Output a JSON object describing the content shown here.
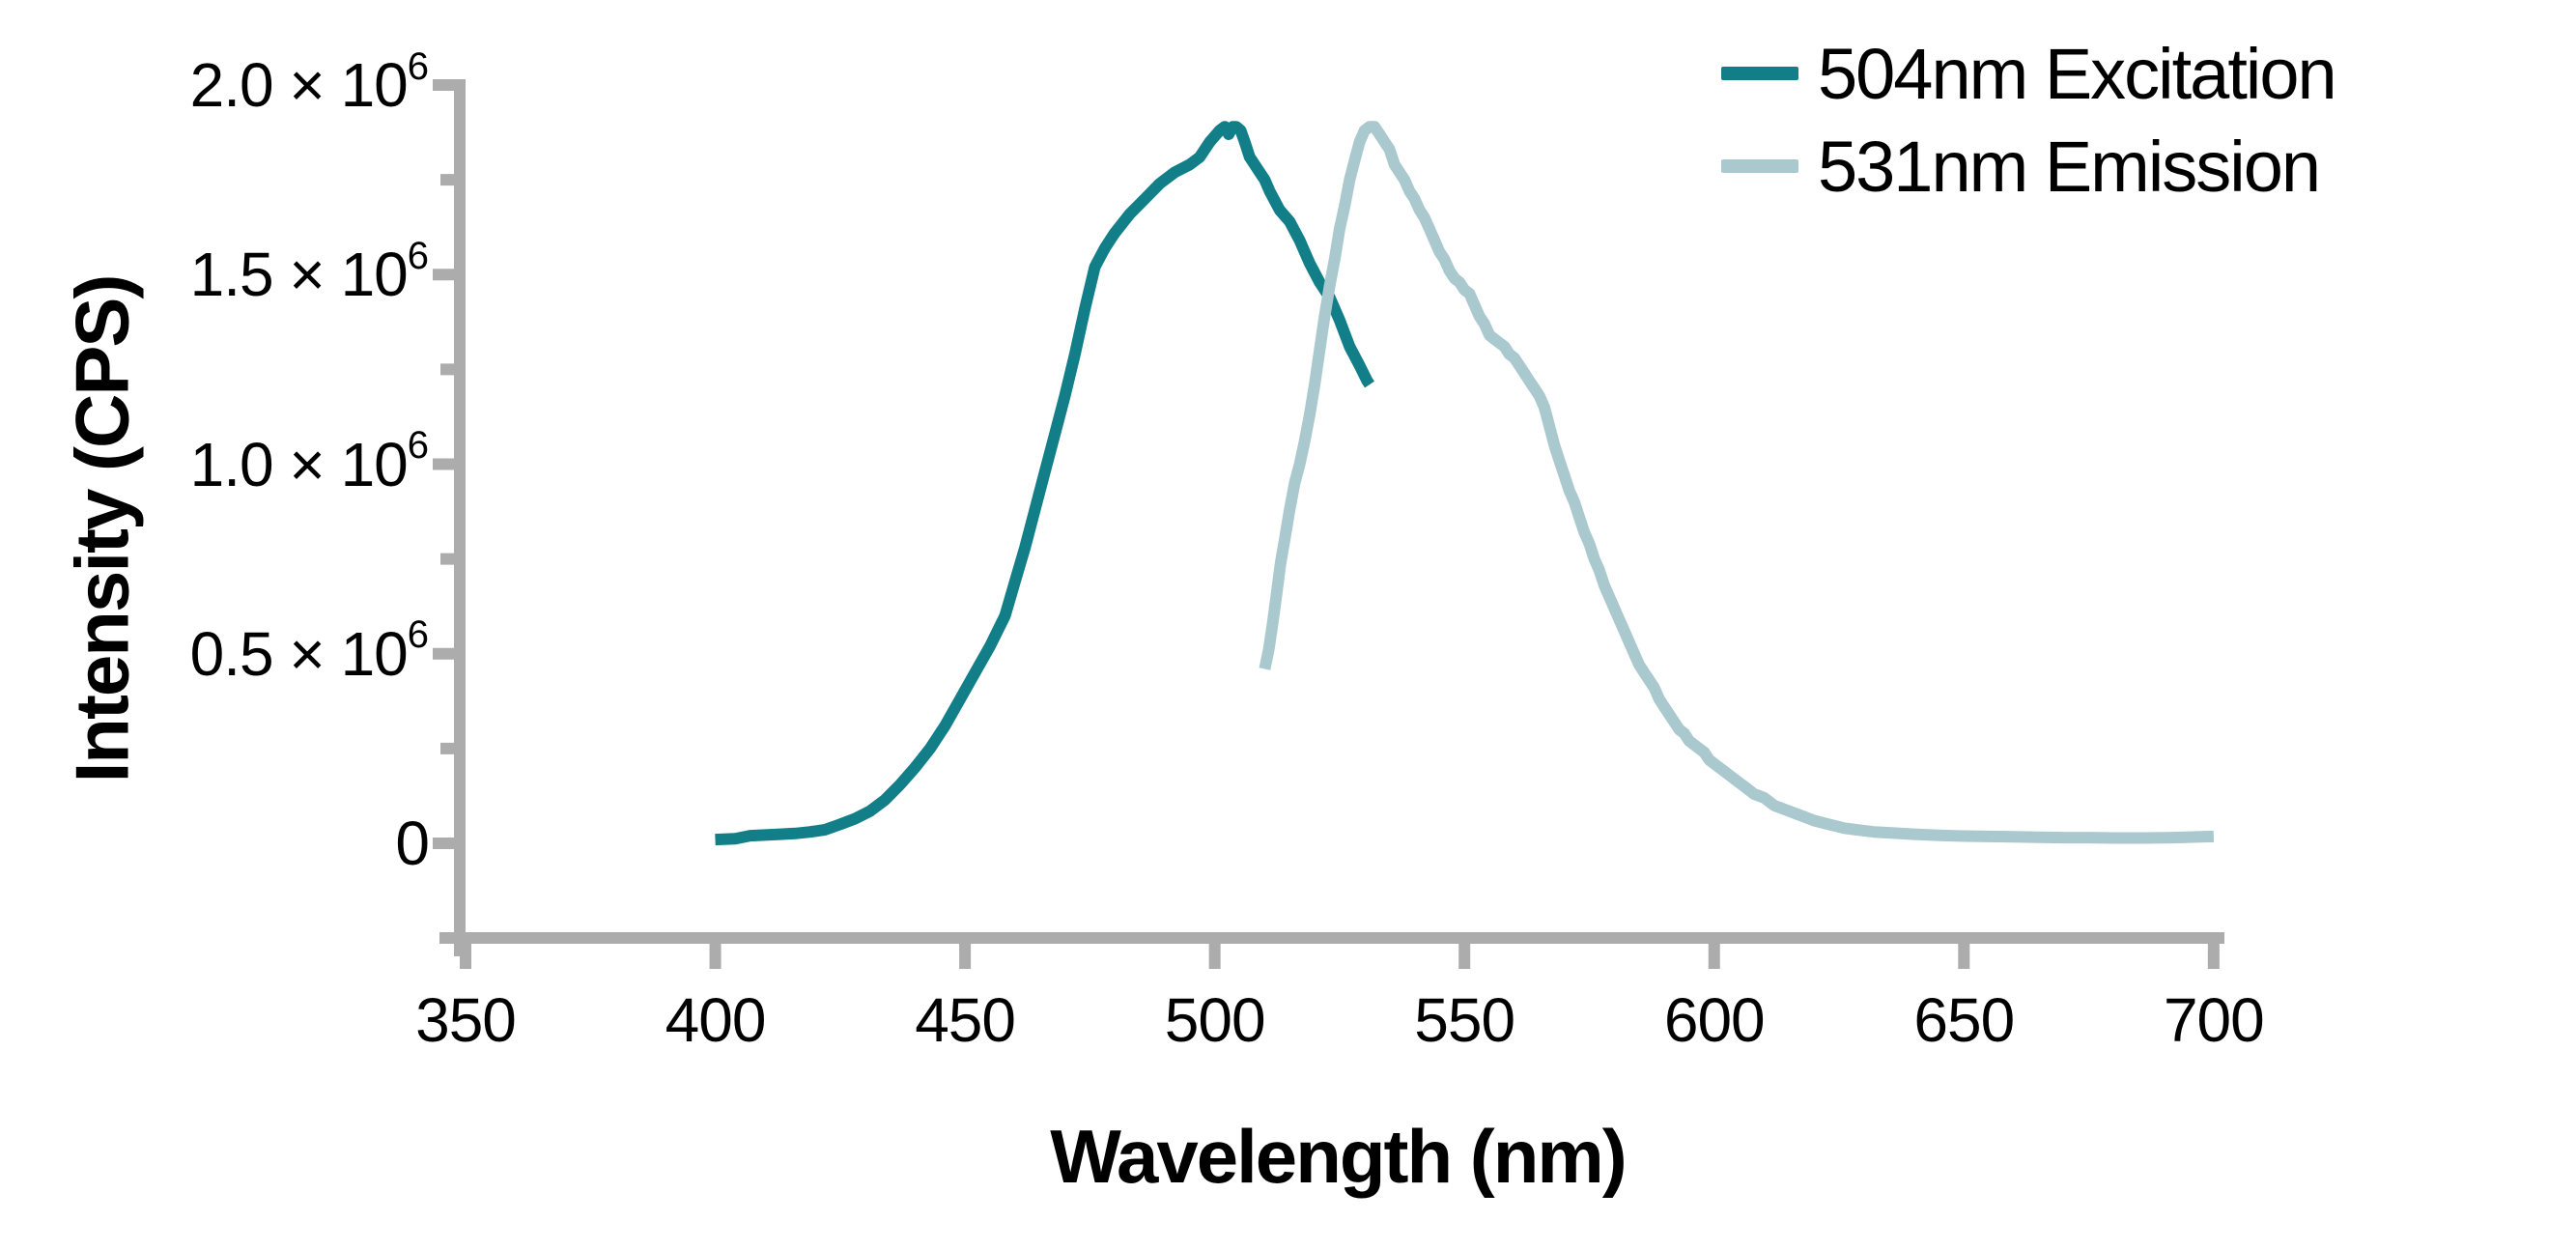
{
  "chart_data": {
    "type": "line",
    "title": "",
    "xlabel": "Wavelength (nm)",
    "ylabel": "Intensity (CPS)",
    "xlim": [
      350,
      700
    ],
    "ylim": [
      0,
      2000000
    ],
    "grid": false,
    "legend_position": "top-right",
    "axis_color": "#acacac",
    "text_color": "#000000",
    "x_ticks": [
      350,
      400,
      450,
      500,
      550,
      600,
      650,
      700
    ],
    "y_ticks": [
      {
        "value": 0,
        "base": "0",
        "sup": "",
        "label": "0"
      },
      {
        "value": 500000,
        "base": "0.5 × 10",
        "sup": "6",
        "label": "0.5 × 10⁶"
      },
      {
        "value": 1000000,
        "base": "1.0 × 10",
        "sup": "6",
        "label": "1.0 × 10⁶"
      },
      {
        "value": 1500000,
        "base": "1.5 × 10",
        "sup": "6",
        "label": "1.5 × 10⁶"
      },
      {
        "value": 2000000,
        "base": "2.0 × 10",
        "sup": "6",
        "label": "2.0 × 10⁶"
      }
    ],
    "y_minor_ticks": [
      250000,
      750000,
      1250000,
      1750000
    ],
    "series": [
      {
        "name": "504nm Excitation",
        "color": "#117e88",
        "peak_nm": 504,
        "peak_intensity_cps": 1890000,
        "points_nm_vs_Mcps": [
          [
            400,
            0.01
          ],
          [
            404,
            0.012
          ],
          [
            407,
            0.02
          ],
          [
            410,
            0.022
          ],
          [
            413,
            0.024
          ],
          [
            416,
            0.026
          ],
          [
            419,
            0.03
          ],
          [
            422,
            0.036
          ],
          [
            425,
            0.05
          ],
          [
            428,
            0.065
          ],
          [
            431,
            0.085
          ],
          [
            434,
            0.115
          ],
          [
            437,
            0.155
          ],
          [
            440,
            0.2
          ],
          [
            443,
            0.25
          ],
          [
            446,
            0.31
          ],
          [
            449,
            0.38
          ],
          [
            452,
            0.45
          ],
          [
            455,
            0.52
          ],
          [
            458,
            0.6
          ],
          [
            460,
            0.69
          ],
          [
            462,
            0.78
          ],
          [
            464,
            0.88
          ],
          [
            466,
            0.98
          ],
          [
            468,
            1.08
          ],
          [
            470,
            1.18
          ],
          [
            472,
            1.29
          ],
          [
            474,
            1.41
          ],
          [
            476,
            1.52
          ],
          [
            478,
            1.57
          ],
          [
            480,
            1.61
          ],
          [
            483,
            1.66
          ],
          [
            486,
            1.7
          ],
          [
            489,
            1.74
          ],
          [
            492,
            1.77
          ],
          [
            495,
            1.79
          ],
          [
            497,
            1.81
          ],
          [
            499,
            1.85
          ],
          [
            501,
            1.88
          ],
          [
            502,
            1.89
          ],
          [
            502.8,
            1.87
          ],
          [
            503.6,
            1.89
          ],
          [
            504.3,
            1.89
          ],
          [
            505.2,
            1.88
          ],
          [
            506,
            1.85
          ],
          [
            507,
            1.81
          ],
          [
            508,
            1.79
          ],
          [
            509,
            1.77
          ],
          [
            510,
            1.75
          ],
          [
            511,
            1.72
          ],
          [
            513,
            1.67
          ],
          [
            515,
            1.64
          ],
          [
            517,
            1.59
          ],
          [
            519,
            1.53
          ],
          [
            521,
            1.48
          ],
          [
            523,
            1.44
          ],
          [
            525,
            1.38
          ],
          [
            527,
            1.31
          ],
          [
            529,
            1.26
          ],
          [
            530.5,
            1.22
          ],
          [
            531,
            1.21
          ]
        ]
      },
      {
        "name": "531nm Emission",
        "color": "#a9c9cf",
        "peak_nm": 531,
        "peak_intensity_cps": 1890000,
        "points_nm_vs_Mcps": [
          [
            510,
            0.46
          ],
          [
            510.8,
            0.51
          ],
          [
            511.6,
            0.58
          ],
          [
            512.4,
            0.66
          ],
          [
            513.2,
            0.74
          ],
          [
            514,
            0.8
          ],
          [
            515,
            0.88
          ],
          [
            516,
            0.95
          ],
          [
            517,
            1.0
          ],
          [
            518,
            1.06
          ],
          [
            519,
            1.13
          ],
          [
            520,
            1.21
          ],
          [
            521,
            1.3
          ],
          [
            522,
            1.39
          ],
          [
            523,
            1.47
          ],
          [
            524,
            1.54
          ],
          [
            525,
            1.62
          ],
          [
            526,
            1.68
          ],
          [
            527,
            1.75
          ],
          [
            528,
            1.8
          ],
          [
            529,
            1.85
          ],
          [
            530,
            1.88
          ],
          [
            531,
            1.89
          ],
          [
            532,
            1.89
          ],
          [
            533,
            1.87
          ],
          [
            534,
            1.85
          ],
          [
            535,
            1.83
          ],
          [
            536,
            1.79
          ],
          [
            537,
            1.77
          ],
          [
            538,
            1.75
          ],
          [
            539,
            1.72
          ],
          [
            540,
            1.7
          ],
          [
            541,
            1.67
          ],
          [
            542,
            1.65
          ],
          [
            543,
            1.62
          ],
          [
            544,
            1.59
          ],
          [
            545,
            1.56
          ],
          [
            546,
            1.54
          ],
          [
            547,
            1.51
          ],
          [
            548,
            1.49
          ],
          [
            549,
            1.48
          ],
          [
            550,
            1.46
          ],
          [
            551,
            1.45
          ],
          [
            552,
            1.42
          ],
          [
            553,
            1.39
          ],
          [
            554,
            1.37
          ],
          [
            555,
            1.34
          ],
          [
            556,
            1.33
          ],
          [
            557,
            1.32
          ],
          [
            558,
            1.31
          ],
          [
            559,
            1.29
          ],
          [
            560,
            1.28
          ],
          [
            561,
            1.26
          ],
          [
            562,
            1.24
          ],
          [
            563,
            1.22
          ],
          [
            564,
            1.2
          ],
          [
            565,
            1.18
          ],
          [
            566,
            1.15
          ],
          [
            567,
            1.1
          ],
          [
            568,
            1.05
          ],
          [
            569,
            1.01
          ],
          [
            570,
            0.97
          ],
          [
            571,
            0.93
          ],
          [
            572,
            0.9
          ],
          [
            573,
            0.86
          ],
          [
            574,
            0.82
          ],
          [
            575,
            0.79
          ],
          [
            576,
            0.75
          ],
          [
            577,
            0.72
          ],
          [
            578,
            0.68
          ],
          [
            579,
            0.65
          ],
          [
            580,
            0.62
          ],
          [
            581,
            0.59
          ],
          [
            582,
            0.56
          ],
          [
            583,
            0.53
          ],
          [
            584,
            0.5
          ],
          [
            585,
            0.47
          ],
          [
            586,
            0.45
          ],
          [
            587,
            0.43
          ],
          [
            588,
            0.41
          ],
          [
            589,
            0.38
          ],
          [
            590,
            0.36
          ],
          [
            591,
            0.34
          ],
          [
            592,
            0.32
          ],
          [
            593,
            0.3
          ],
          [
            594,
            0.29
          ],
          [
            595,
            0.27
          ],
          [
            596,
            0.26
          ],
          [
            597,
            0.25
          ],
          [
            598,
            0.24
          ],
          [
            599,
            0.22
          ],
          [
            600,
            0.21
          ],
          [
            602,
            0.19
          ],
          [
            604,
            0.17
          ],
          [
            606,
            0.15
          ],
          [
            608,
            0.13
          ],
          [
            610,
            0.12
          ],
          [
            612,
            0.1
          ],
          [
            614,
            0.09
          ],
          [
            616,
            0.08
          ],
          [
            618,
            0.07
          ],
          [
            620,
            0.06
          ],
          [
            623,
            0.05
          ],
          [
            626,
            0.04
          ],
          [
            629,
            0.035
          ],
          [
            632,
            0.03
          ],
          [
            636,
            0.027
          ],
          [
            640,
            0.024
          ],
          [
            645,
            0.021
          ],
          [
            650,
            0.019
          ],
          [
            655,
            0.018
          ],
          [
            660,
            0.017
          ],
          [
            665,
            0.016
          ],
          [
            670,
            0.015
          ],
          [
            675,
            0.015
          ],
          [
            680,
            0.014
          ],
          [
            686,
            0.014
          ],
          [
            692,
            0.015
          ],
          [
            700,
            0.018
          ]
        ]
      }
    ]
  },
  "legend": {
    "items": [
      {
        "label": "504nm Excitation",
        "color": "#117e88"
      },
      {
        "label": "531nm Emission",
        "color": "#a9c9cf"
      }
    ]
  },
  "axes": {
    "x_label": "Wavelength (nm)",
    "y_label": "Intensity (CPS)"
  }
}
